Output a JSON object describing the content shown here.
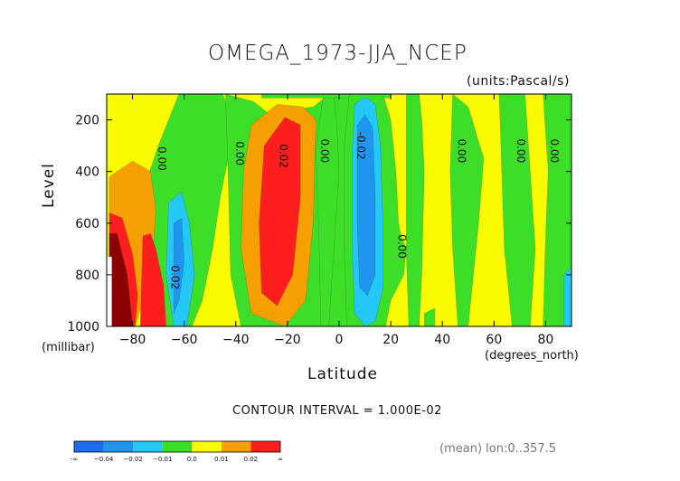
{
  "title": "OMEGA_1973-JJA_NCEP",
  "units": "(units:Pascal/s)",
  "contour_interval": "CONTOUR INTERVAL = 1.000E-02",
  "mean_note": "(mean) lon:0..357.5",
  "colorbar": {
    "labels": [
      "-∞",
      "−0.04",
      "−0.02",
      "−0.01",
      "0.0",
      "0.01",
      "0.02",
      "∞"
    ],
    "colors": [
      "#1e6cf0",
      "#1e96f0",
      "#23c8f5",
      "#3dde28",
      "#fafa00",
      "#f5a000",
      "#ff1e1e"
    ]
  },
  "chart_data": {
    "type": "heatmap",
    "title": "OMEGA_1973-JJA_NCEP",
    "xlabel": "Latitude",
    "xunit": "(degrees_north)",
    "ylabel": "Level",
    "yunit": "(millibar)",
    "xlim": [
      -90,
      90
    ],
    "ylim": [
      1000,
      100
    ],
    "xticks": [
      -80,
      -60,
      -40,
      -20,
      0,
      20,
      40,
      60,
      80
    ],
    "yticks": [
      200,
      400,
      600,
      800,
      1000
    ],
    "background_color": "#fafa00",
    "contour_labels": [
      {
        "text": "0.00",
        "lat": -70,
        "level": 350
      },
      {
        "text": "0.00",
        "lat": -40,
        "level": 330
      },
      {
        "text": "0.02",
        "lat": -23,
        "level": 340
      },
      {
        "text": "0.00",
        "lat": -7,
        "level": 320
      },
      {
        "text": "-0.02",
        "lat": 7,
        "level": 300
      },
      {
        "text": "0.00",
        "lat": 46,
        "level": 320
      },
      {
        "text": "0.00",
        "lat": 69,
        "level": 320
      },
      {
        "text": "0.00",
        "lat": 82,
        "level": 320
      },
      {
        "text": "0.00",
        "lat": 23,
        "level": 690
      },
      {
        "text": "0.02",
        "lat": -65,
        "level": 810
      }
    ],
    "regions": [
      {
        "color": "#3dde28",
        "pts": [
          [
            -62,
            100
          ],
          [
            -50,
            100
          ],
          [
            -45,
            100
          ],
          [
            -43,
            160
          ],
          [
            -42,
            300
          ],
          [
            -46,
            500
          ],
          [
            -49,
            700
          ],
          [
            -53,
            900
          ],
          [
            -57,
            1000
          ],
          [
            -68,
            1000
          ],
          [
            -72,
            900
          ],
          [
            -75,
            750
          ],
          [
            -76,
            600
          ],
          [
            -74,
            420
          ],
          [
            -70,
            300
          ],
          [
            -66,
            200
          ]
        ]
      },
      {
        "color": "#3dde28",
        "pts": [
          [
            -44,
            100
          ],
          [
            -33,
            130
          ],
          [
            -28,
            170
          ],
          [
            -18,
            160
          ],
          [
            -10,
            150
          ],
          [
            -4,
            100
          ],
          [
            5,
            100
          ],
          [
            6,
            250
          ],
          [
            5,
            500
          ],
          [
            4,
            800
          ],
          [
            6,
            1000
          ],
          [
            -38,
            1000
          ],
          [
            -42,
            800
          ],
          [
            -43,
            400
          ]
        ]
      },
      {
        "color": "#3dde28",
        "pts": [
          [
            -6,
            100
          ],
          [
            -2,
            100
          ],
          [
            -1,
            200
          ],
          [
            0,
            400
          ],
          [
            -2,
            700
          ],
          [
            -4,
            1000
          ],
          [
            -7,
            1000
          ],
          [
            -8,
            600
          ],
          [
            -9,
            300
          ]
        ]
      },
      {
        "color": "#3dde28",
        "pts": [
          [
            -30,
            100
          ],
          [
            20,
            100
          ],
          [
            20,
            115
          ],
          [
            -30,
            115
          ]
        ]
      },
      {
        "color": "#3dde28",
        "pts": [
          [
            4,
            100
          ],
          [
            17,
            100
          ],
          [
            20,
            200
          ],
          [
            22,
            400
          ],
          [
            23,
            600
          ],
          [
            24,
            650
          ],
          [
            26,
            700
          ],
          [
            25,
            800
          ],
          [
            20,
            900
          ],
          [
            18,
            1000
          ],
          [
            3,
            1000
          ],
          [
            2,
            700
          ],
          [
            2,
            300
          ]
        ]
      },
      {
        "color": "#3dde28",
        "pts": [
          [
            26,
            100
          ],
          [
            31,
            100
          ],
          [
            32,
            200
          ],
          [
            33,
            400
          ],
          [
            32,
            800
          ],
          [
            31,
            1000
          ],
          [
            27,
            1000
          ],
          [
            26,
            700
          ]
        ]
      },
      {
        "color": "#3dde28",
        "pts": [
          [
            33,
            950
          ],
          [
            37,
            930
          ],
          [
            37,
            1000
          ],
          [
            33,
            1000
          ]
        ]
      },
      {
        "color": "#3dde28",
        "pts": [
          [
            62,
            100
          ],
          [
            72,
            100
          ],
          [
            74,
            400
          ],
          [
            76,
            700
          ],
          [
            74,
            1000
          ],
          [
            67,
            1000
          ],
          [
            64,
            700
          ]
        ]
      },
      {
        "color": "#3dde28",
        "pts": [
          [
            44,
            100
          ],
          [
            50,
            150
          ],
          [
            56,
            350
          ],
          [
            54,
            600
          ],
          [
            51,
            900
          ],
          [
            50,
            1000
          ],
          [
            46,
            1000
          ],
          [
            44,
            700
          ],
          [
            43,
            400
          ]
        ]
      },
      {
        "color": "#3dde28",
        "pts": [
          [
            79,
            100
          ],
          [
            90,
            100
          ],
          [
            90,
            1000
          ],
          [
            79,
            1000
          ],
          [
            80,
            650
          ],
          [
            81,
            400
          ]
        ]
      },
      {
        "color": "#23c8f5",
        "pts": [
          [
            -66,
            520
          ],
          [
            -61,
            480
          ],
          [
            -58,
            600
          ],
          [
            -56,
            800
          ],
          [
            -59,
            1000
          ],
          [
            -64,
            1000
          ],
          [
            -67,
            800
          ]
        ]
      },
      {
        "color": "#1e96f0",
        "pts": [
          [
            -64,
            600
          ],
          [
            -61,
            580
          ],
          [
            -60,
            750
          ],
          [
            -62,
            900
          ],
          [
            -64,
            950
          ]
        ]
      },
      {
        "color": "#23c8f5",
        "pts": [
          [
            6,
            140
          ],
          [
            10,
            110
          ],
          [
            14,
            140
          ],
          [
            16,
            300
          ],
          [
            17,
            600
          ],
          [
            17,
            850
          ],
          [
            14,
            980
          ],
          [
            10,
            1000
          ],
          [
            6,
            950
          ],
          [
            5,
            700
          ],
          [
            5,
            350
          ]
        ]
      },
      {
        "color": "#1e96f0",
        "pts": [
          [
            7,
            220
          ],
          [
            10,
            180
          ],
          [
            13,
            230
          ],
          [
            14,
            500
          ],
          [
            14,
            800
          ],
          [
            11,
            880
          ],
          [
            8,
            850
          ],
          [
            7,
            600
          ]
        ]
      },
      {
        "color": "#23c8f5",
        "pts": [
          [
            87,
            800
          ],
          [
            90,
            770
          ],
          [
            90,
            1000
          ],
          [
            87,
            1000
          ]
        ]
      },
      {
        "color": "#f5a000",
        "pts": [
          [
            -34,
            220
          ],
          [
            -24,
            140
          ],
          [
            -14,
            150
          ],
          [
            -9,
            200
          ],
          [
            -10,
            600
          ],
          [
            -13,
            900
          ],
          [
            -21,
            1000
          ],
          [
            -34,
            950
          ],
          [
            -38,
            700
          ],
          [
            -37,
            400
          ]
        ]
      },
      {
        "color": "#ff1e1e",
        "pts": [
          [
            -29,
            300
          ],
          [
            -21,
            190
          ],
          [
            -15,
            220
          ],
          [
            -15,
            500
          ],
          [
            -18,
            800
          ],
          [
            -24,
            920
          ],
          [
            -30,
            870
          ],
          [
            -31,
            600
          ]
        ]
      },
      {
        "color": "#f5a000",
        "pts": [
          [
            -89,
            420
          ],
          [
            -80,
            360
          ],
          [
            -73,
            400
          ],
          [
            -71,
            550
          ],
          [
            -72,
            700
          ],
          [
            -76,
            900
          ],
          [
            -79,
            1000
          ],
          [
            -89,
            1000
          ]
        ]
      },
      {
        "color": "#ff1e1e",
        "pts": [
          [
            -89,
            560
          ],
          [
            -84,
            580
          ],
          [
            -80,
            720
          ],
          [
            -78,
            880
          ],
          [
            -79,
            1000
          ],
          [
            -89,
            1000
          ]
        ]
      },
      {
        "color": "#ff1e1e",
        "pts": [
          [
            -76,
            650
          ],
          [
            -73,
            640
          ],
          [
            -71,
            700
          ],
          [
            -68,
            840
          ],
          [
            -67,
            1000
          ],
          [
            -77,
            1000
          ]
        ]
      },
      {
        "color": "#8b0000",
        "pts": [
          [
            -89,
            640
          ],
          [
            -86,
            640
          ],
          [
            -82,
            800
          ],
          [
            -80,
            1000
          ],
          [
            -89,
            1000
          ]
        ]
      },
      {
        "color": "#ffffff",
        "pts": [
          [
            -90,
            730
          ],
          [
            -88,
            730
          ],
          [
            -88,
            1000
          ],
          [
            -90,
            1000
          ]
        ]
      }
    ]
  }
}
